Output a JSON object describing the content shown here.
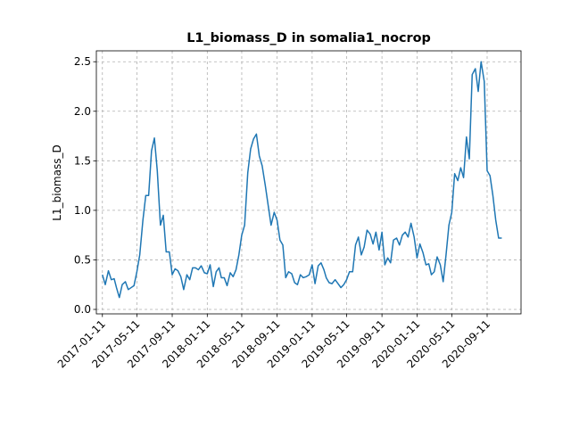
{
  "chart_data": {
    "type": "line",
    "title": "L1_biomass_D in somalia1_nocrop",
    "ylabel": "L1_biomass_D",
    "color": "#1f77b4",
    "grid": true,
    "x": [
      "2017-01-11",
      "2017-01-21",
      "2017-02-01",
      "2017-02-11",
      "2017-02-21",
      "2017-03-01",
      "2017-03-11",
      "2017-03-21",
      "2017-04-01",
      "2017-04-11",
      "2017-04-21",
      "2017-05-01",
      "2017-05-11",
      "2017-05-21",
      "2017-06-01",
      "2017-06-11",
      "2017-06-21",
      "2017-07-01",
      "2017-07-11",
      "2017-07-21",
      "2017-08-01",
      "2017-08-11",
      "2017-08-21",
      "2017-09-01",
      "2017-09-11",
      "2017-09-21",
      "2017-10-01",
      "2017-10-11",
      "2017-10-21",
      "2017-11-01",
      "2017-11-11",
      "2017-11-21",
      "2017-12-01",
      "2017-12-11",
      "2017-12-21",
      "2018-01-01",
      "2018-01-11",
      "2018-01-21",
      "2018-02-01",
      "2018-02-11",
      "2018-02-21",
      "2018-03-01",
      "2018-03-11",
      "2018-03-21",
      "2018-04-01",
      "2018-04-11",
      "2018-04-21",
      "2018-05-01",
      "2018-05-11",
      "2018-05-21",
      "2018-06-01",
      "2018-06-11",
      "2018-06-21",
      "2018-07-01",
      "2018-07-11",
      "2018-07-21",
      "2018-08-01",
      "2018-08-11",
      "2018-08-21",
      "2018-09-01",
      "2018-09-11",
      "2018-09-21",
      "2018-10-01",
      "2018-10-11",
      "2018-10-21",
      "2018-11-01",
      "2018-11-11",
      "2018-11-21",
      "2018-12-01",
      "2018-12-11",
      "2018-12-21",
      "2019-01-01",
      "2019-01-11",
      "2019-01-21",
      "2019-02-01",
      "2019-02-11",
      "2019-02-21",
      "2019-03-01",
      "2019-03-11",
      "2019-03-21",
      "2019-04-01",
      "2019-04-11",
      "2019-04-21",
      "2019-05-01",
      "2019-05-11",
      "2019-05-21",
      "2019-06-01",
      "2019-06-11",
      "2019-06-21",
      "2019-07-01",
      "2019-07-11",
      "2019-07-21",
      "2019-08-01",
      "2019-08-11",
      "2019-08-21",
      "2019-09-01",
      "2019-09-11",
      "2019-09-21",
      "2019-10-01",
      "2019-10-11",
      "2019-10-21",
      "2019-11-01",
      "2019-11-11",
      "2019-11-21",
      "2019-12-01",
      "2019-12-11",
      "2019-12-21",
      "2020-01-01",
      "2020-01-11",
      "2020-01-21",
      "2020-02-01",
      "2020-02-11",
      "2020-02-21",
      "2020-03-01",
      "2020-03-11",
      "2020-03-21",
      "2020-04-01",
      "2020-04-11",
      "2020-04-21",
      "2020-05-01",
      "2020-05-11",
      "2020-05-21",
      "2020-06-01",
      "2020-06-11",
      "2020-06-21",
      "2020-07-01",
      "2020-07-11",
      "2020-07-21",
      "2020-08-01",
      "2020-08-11",
      "2020-08-21",
      "2020-09-01",
      "2020-09-11",
      "2020-09-21",
      "2020-10-01",
      "2020-10-11",
      "2020-10-21",
      "2020-11-01"
    ],
    "values": [
      0.35,
      0.25,
      0.39,
      0.3,
      0.31,
      0.22,
      0.12,
      0.25,
      0.28,
      0.2,
      0.22,
      0.24,
      0.38,
      0.55,
      0.9,
      1.15,
      1.15,
      1.6,
      1.73,
      1.4,
      0.85,
      0.95,
      0.58,
      0.58,
      0.35,
      0.41,
      0.39,
      0.33,
      0.2,
      0.35,
      0.3,
      0.42,
      0.42,
      0.4,
      0.44,
      0.37,
      0.36,
      0.45,
      0.23,
      0.38,
      0.42,
      0.32,
      0.32,
      0.24,
      0.37,
      0.33,
      0.4,
      0.55,
      0.75,
      0.85,
      1.38,
      1.62,
      1.72,
      1.77,
      1.55,
      1.45,
      1.25,
      1.05,
      0.85,
      0.98,
      0.9,
      0.7,
      0.65,
      0.32,
      0.38,
      0.36,
      0.27,
      0.25,
      0.35,
      0.32,
      0.33,
      0.35,
      0.45,
      0.26,
      0.44,
      0.47,
      0.4,
      0.32,
      0.27,
      0.26,
      0.3,
      0.26,
      0.22,
      0.25,
      0.3,
      0.38,
      0.38,
      0.65,
      0.73,
      0.55,
      0.63,
      0.8,
      0.76,
      0.66,
      0.78,
      0.6,
      0.78,
      0.45,
      0.52,
      0.47,
      0.7,
      0.72,
      0.65,
      0.75,
      0.78,
      0.73,
      0.87,
      0.73,
      0.52,
      0.66,
      0.57,
      0.45,
      0.46,
      0.35,
      0.38,
      0.53,
      0.45,
      0.28,
      0.55,
      0.85,
      0.98,
      1.37,
      1.3,
      1.43,
      1.33,
      1.74,
      1.52,
      2.37,
      2.43,
      2.2,
      2.5,
      2.3,
      1.4,
      1.35,
      1.15,
      0.9,
      0.72,
      0.72
    ],
    "xlim": [
      "2016-12-21",
      "2021-01-07"
    ],
    "xticks": [
      "2017-01-11",
      "2017-05-11",
      "2017-09-11",
      "2018-01-11",
      "2018-05-11",
      "2018-09-11",
      "2019-01-11",
      "2019-05-11",
      "2019-09-11",
      "2020-01-11",
      "2020-05-11",
      "2020-09-11"
    ],
    "ylim": [
      -0.045,
      2.61
    ],
    "yticks": [
      {
        "value": 0,
        "label": "0.0"
      },
      0.5,
      {
        "value": 1,
        "label": "1.0"
      },
      1.5,
      {
        "value": 2,
        "label": "2.0"
      },
      2.5
    ]
  }
}
